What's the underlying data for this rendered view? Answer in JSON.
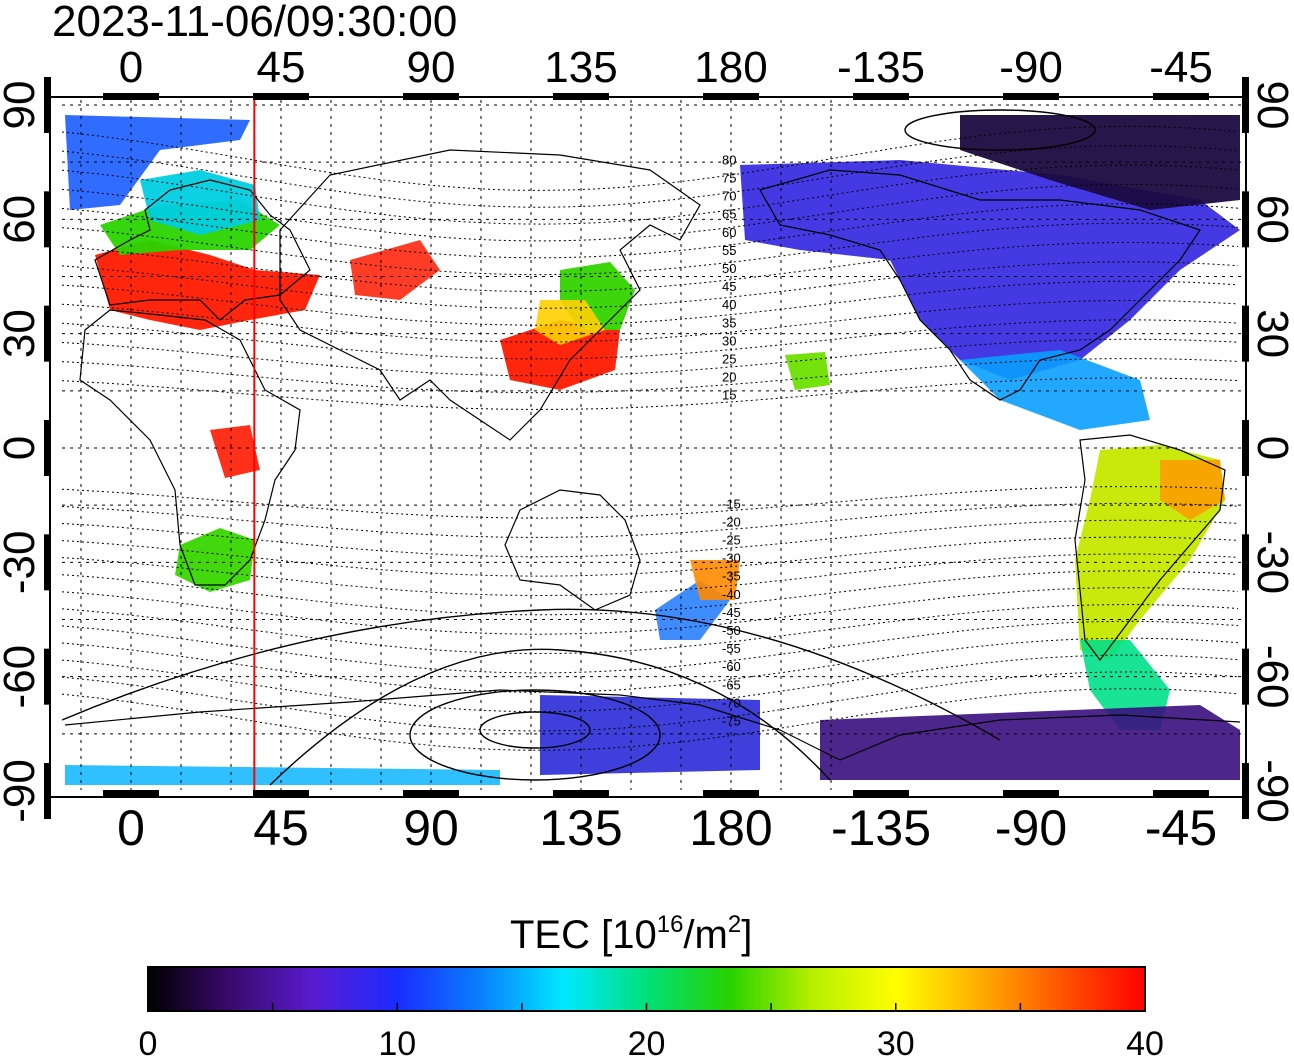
{
  "timestamp": "2023-11-06/09:30:00",
  "lon_ticks_bottom": [
    "0",
    "45",
    "90",
    "135",
    "180",
    "-135",
    "-90",
    "-45"
  ],
  "lon_ticks_top": [
    "0",
    "45",
    "90",
    "135",
    "180",
    "-135",
    "-90",
    "-45"
  ],
  "lat_ticks_left": [
    "90",
    "60",
    "30",
    "0",
    "-30",
    "-60",
    "-90"
  ],
  "lat_ticks_right": [
    "90",
    "60",
    "30",
    "0",
    "-30",
    "-60",
    "-90"
  ],
  "mag_lat_labels": [
    "80",
    "75",
    "70",
    "65",
    "60",
    "55",
    "50",
    "45",
    "40",
    "35",
    "30",
    "25",
    "20",
    "15",
    "-15",
    "-20",
    "-25",
    "-30",
    "-35",
    "-40",
    "-45",
    "-50",
    "-55",
    "-60",
    "-65",
    "-70",
    "-75"
  ],
  "colorbar": {
    "title_main": "TEC  [10",
    "title_sup1": "16",
    "title_mid": "/m",
    "title_sup2": "2",
    "title_end": "]",
    "min": 0,
    "max": 40,
    "tick_labels": [
      "0",
      "10",
      "20",
      "30",
      "40"
    ],
    "colors": [
      "#000000",
      "#3a0a6e",
      "#5a1bd0",
      "#1a2cff",
      "#0a7fff",
      "#00e8ff",
      "#00e07a",
      "#27d200",
      "#b6ef00",
      "#ffff00",
      "#ffae00",
      "#ff5400",
      "#ff0000"
    ]
  },
  "map": {
    "terminator_lon_deg": 37,
    "terminator_color": "#ff0000"
  }
}
